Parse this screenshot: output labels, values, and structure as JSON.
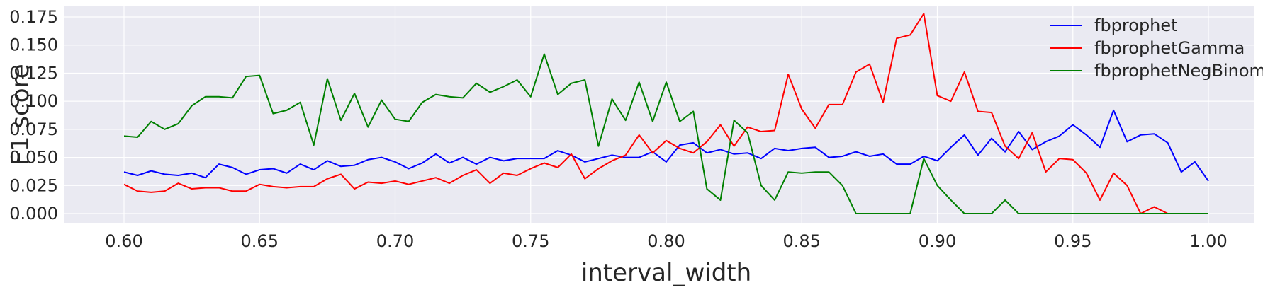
{
  "chart_data": {
    "type": "line",
    "title": "",
    "xlabel": "interval_width",
    "ylabel": "F1 score",
    "xlim": [
      0.58,
      1.02
    ],
    "ylim": [
      -0.009,
      0.187
    ],
    "xticks": [
      "0.60",
      "0.65",
      "0.70",
      "0.75",
      "0.80",
      "0.85",
      "0.90",
      "0.95",
      "1.00"
    ],
    "yticks": [
      "0.000",
      "0.025",
      "0.050",
      "0.075",
      "0.100",
      "0.125",
      "0.150",
      "0.175"
    ],
    "grid": true,
    "legend_position": "top-right",
    "x": [
      0.6,
      0.605,
      0.61,
      0.615,
      0.62,
      0.625,
      0.63,
      0.635,
      0.64,
      0.645,
      0.65,
      0.655,
      0.66,
      0.665,
      0.67,
      0.675,
      0.68,
      0.685,
      0.69,
      0.695,
      0.7,
      0.705,
      0.71,
      0.715,
      0.72,
      0.725,
      0.73,
      0.735,
      0.74,
      0.745,
      0.75,
      0.755,
      0.76,
      0.765,
      0.77,
      0.775,
      0.78,
      0.785,
      0.79,
      0.795,
      0.8,
      0.805,
      0.81,
      0.815,
      0.82,
      0.825,
      0.83,
      0.835,
      0.84,
      0.845,
      0.85,
      0.855,
      0.86,
      0.865,
      0.87,
      0.875,
      0.88,
      0.885,
      0.89,
      0.895,
      0.9,
      0.905,
      0.91,
      0.915,
      0.92,
      0.925,
      0.93,
      0.935,
      0.94,
      0.945,
      0.95,
      0.955,
      0.96,
      0.965,
      0.97,
      0.975,
      0.98,
      0.985,
      0.99,
      0.995,
      1.0
    ],
    "series": [
      {
        "name": "fbprophet",
        "color": "#0000ff",
        "values": [
          0.037,
          0.034,
          0.038,
          0.035,
          0.034,
          0.036,
          0.032,
          0.044,
          0.041,
          0.035,
          0.039,
          0.04,
          0.036,
          0.044,
          0.039,
          0.047,
          0.042,
          0.043,
          0.048,
          0.05,
          0.046,
          0.04,
          0.045,
          0.053,
          0.045,
          0.05,
          0.044,
          0.05,
          0.047,
          0.049,
          0.049,
          0.049,
          0.056,
          0.052,
          0.046,
          0.049,
          0.052,
          0.05,
          0.05,
          0.055,
          0.046,
          0.061,
          0.063,
          0.054,
          0.057,
          0.053,
          0.054,
          0.049,
          0.058,
          0.056,
          0.058,
          0.059,
          0.05,
          0.051,
          0.055,
          0.051,
          0.053,
          0.044,
          0.044,
          0.051,
          0.047,
          0.059,
          0.07,
          0.052,
          0.067,
          0.055,
          0.073,
          0.057,
          0.064,
          0.069,
          0.079,
          0.07,
          0.059,
          0.092,
          0.064,
          0.07,
          0.071,
          0.063,
          0.037,
          0.046,
          0.029
        ]
      },
      {
        "name": "fbprophetGamma",
        "color": "#ff0000",
        "values": [
          0.026,
          0.02,
          0.019,
          0.02,
          0.027,
          0.022,
          0.023,
          0.023,
          0.02,
          0.02,
          0.026,
          0.024,
          0.023,
          0.024,
          0.024,
          0.031,
          0.035,
          0.022,
          0.028,
          0.027,
          0.029,
          0.026,
          0.029,
          0.032,
          0.027,
          0.034,
          0.039,
          0.027,
          0.036,
          0.034,
          0.04,
          0.045,
          0.041,
          0.053,
          0.031,
          0.04,
          0.047,
          0.052,
          0.07,
          0.054,
          0.065,
          0.058,
          0.054,
          0.064,
          0.079,
          0.06,
          0.077,
          0.073,
          0.074,
          0.124,
          0.093,
          0.076,
          0.097,
          0.097,
          0.126,
          0.133,
          0.099,
          0.156,
          0.159,
          0.178,
          0.105,
          0.1,
          0.126,
          0.091,
          0.09,
          0.06,
          0.049,
          0.072,
          0.037,
          0.049,
          0.048,
          0.036,
          0.012,
          0.036,
          0.025,
          0.0,
          0.006,
          0.0,
          0.0,
          0.0,
          0.0
        ]
      },
      {
        "name": "fbprophetNegBinomial",
        "color": "#008000",
        "values": [
          0.069,
          0.068,
          0.082,
          0.075,
          0.08,
          0.096,
          0.104,
          0.104,
          0.103,
          0.122,
          0.123,
          0.089,
          0.092,
          0.099,
          0.061,
          0.12,
          0.083,
          0.107,
          0.077,
          0.101,
          0.084,
          0.082,
          0.099,
          0.106,
          0.104,
          0.103,
          0.116,
          0.108,
          0.113,
          0.119,
          0.104,
          0.142,
          0.106,
          0.116,
          0.119,
          0.06,
          0.102,
          0.083,
          0.117,
          0.082,
          0.117,
          0.082,
          0.091,
          0.022,
          0.012,
          0.083,
          0.072,
          0.025,
          0.012,
          0.037,
          0.036,
          0.037,
          0.037,
          0.025,
          0.0,
          0.0,
          0.0,
          0.0,
          0.0,
          0.049,
          0.025,
          0.012,
          0.0,
          0.0,
          0.0,
          0.012,
          0.0,
          0.0,
          0.0,
          0.0,
          0.0,
          0.0,
          0.0,
          0.0,
          0.0,
          0.0,
          0.0,
          0.0,
          0.0,
          0.0,
          0.0
        ]
      }
    ]
  }
}
